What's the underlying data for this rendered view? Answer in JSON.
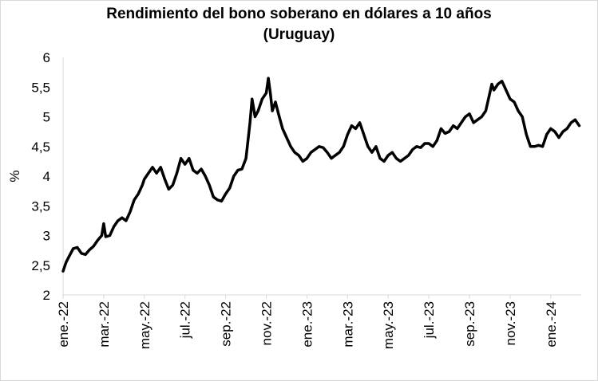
{
  "chart_data": {
    "type": "line",
    "title": "Rendimiento del bono soberano en dólares a 10 años",
    "subtitle": "(Uruguay)",
    "ylabel": "%",
    "xlabel": "",
    "ylim": [
      2,
      6
    ],
    "yticks": [
      "2",
      "2,5",
      "3",
      "3,5",
      "4",
      "4,5",
      "5",
      "5,5",
      "6"
    ],
    "xticks": [
      "ene.-22",
      "mar.-22",
      "may.-22",
      "jul.-22",
      "sep.-22",
      "nov.-22",
      "ene.-23",
      "mar.-23",
      "may.-23",
      "jul.-23",
      "sep.-23",
      "nov.-23",
      "ene.-24"
    ],
    "x_range_months": [
      0,
      25.5
    ],
    "grid": false,
    "series": [
      {
        "color": "#000000",
        "points": [
          [
            0.0,
            2.4
          ],
          [
            0.15,
            2.55
          ],
          [
            0.3,
            2.65
          ],
          [
            0.5,
            2.78
          ],
          [
            0.7,
            2.8
          ],
          [
            0.9,
            2.7
          ],
          [
            1.1,
            2.68
          ],
          [
            1.3,
            2.76
          ],
          [
            1.5,
            2.82
          ],
          [
            1.7,
            2.92
          ],
          [
            1.9,
            3.0
          ],
          [
            2.0,
            3.2
          ],
          [
            2.1,
            2.98
          ],
          [
            2.3,
            3.0
          ],
          [
            2.5,
            3.15
          ],
          [
            2.7,
            3.25
          ],
          [
            2.9,
            3.3
          ],
          [
            3.1,
            3.25
          ],
          [
            3.3,
            3.4
          ],
          [
            3.5,
            3.6
          ],
          [
            3.7,
            3.7
          ],
          [
            3.9,
            3.85
          ],
          [
            4.0,
            3.95
          ],
          [
            4.2,
            4.05
          ],
          [
            4.4,
            4.15
          ],
          [
            4.6,
            4.05
          ],
          [
            4.8,
            4.15
          ],
          [
            5.0,
            3.95
          ],
          [
            5.2,
            3.78
          ],
          [
            5.4,
            3.85
          ],
          [
            5.6,
            4.05
          ],
          [
            5.8,
            4.3
          ],
          [
            6.0,
            4.2
          ],
          [
            6.2,
            4.3
          ],
          [
            6.4,
            4.1
          ],
          [
            6.6,
            4.05
          ],
          [
            6.8,
            4.12
          ],
          [
            7.0,
            4.0
          ],
          [
            7.2,
            3.85
          ],
          [
            7.4,
            3.65
          ],
          [
            7.6,
            3.6
          ],
          [
            7.8,
            3.58
          ],
          [
            8.0,
            3.7
          ],
          [
            8.2,
            3.8
          ],
          [
            8.4,
            4.0
          ],
          [
            8.6,
            4.1
          ],
          [
            8.8,
            4.12
          ],
          [
            9.0,
            4.3
          ],
          [
            9.1,
            4.6
          ],
          [
            9.2,
            4.9
          ],
          [
            9.3,
            5.3
          ],
          [
            9.45,
            5.0
          ],
          [
            9.6,
            5.1
          ],
          [
            9.8,
            5.3
          ],
          [
            10.0,
            5.4
          ],
          [
            10.1,
            5.65
          ],
          [
            10.2,
            5.4
          ],
          [
            10.3,
            5.1
          ],
          [
            10.45,
            5.25
          ],
          [
            10.6,
            5.05
          ],
          [
            10.8,
            4.8
          ],
          [
            11.0,
            4.65
          ],
          [
            11.2,
            4.5
          ],
          [
            11.4,
            4.4
          ],
          [
            11.6,
            4.35
          ],
          [
            11.8,
            4.25
          ],
          [
            12.0,
            4.3
          ],
          [
            12.2,
            4.4
          ],
          [
            12.4,
            4.45
          ],
          [
            12.6,
            4.5
          ],
          [
            12.8,
            4.48
          ],
          [
            13.0,
            4.4
          ],
          [
            13.2,
            4.3
          ],
          [
            13.4,
            4.35
          ],
          [
            13.6,
            4.4
          ],
          [
            13.8,
            4.5
          ],
          [
            14.0,
            4.7
          ],
          [
            14.2,
            4.85
          ],
          [
            14.4,
            4.8
          ],
          [
            14.6,
            4.9
          ],
          [
            14.8,
            4.7
          ],
          [
            15.0,
            4.5
          ],
          [
            15.2,
            4.4
          ],
          [
            15.4,
            4.5
          ],
          [
            15.6,
            4.3
          ],
          [
            15.8,
            4.25
          ],
          [
            16.0,
            4.35
          ],
          [
            16.2,
            4.4
          ],
          [
            16.4,
            4.3
          ],
          [
            16.6,
            4.25
          ],
          [
            16.8,
            4.3
          ],
          [
            17.0,
            4.35
          ],
          [
            17.2,
            4.45
          ],
          [
            17.4,
            4.5
          ],
          [
            17.6,
            4.48
          ],
          [
            17.8,
            4.55
          ],
          [
            18.0,
            4.55
          ],
          [
            18.2,
            4.5
          ],
          [
            18.4,
            4.6
          ],
          [
            18.6,
            4.8
          ],
          [
            18.8,
            4.72
          ],
          [
            19.0,
            4.75
          ],
          [
            19.2,
            4.85
          ],
          [
            19.4,
            4.8
          ],
          [
            19.6,
            4.9
          ],
          [
            19.8,
            5.0
          ],
          [
            20.0,
            5.05
          ],
          [
            20.2,
            4.9
          ],
          [
            20.4,
            4.95
          ],
          [
            20.6,
            5.0
          ],
          [
            20.8,
            5.1
          ],
          [
            21.0,
            5.4
          ],
          [
            21.1,
            5.55
          ],
          [
            21.2,
            5.45
          ],
          [
            21.4,
            5.55
          ],
          [
            21.6,
            5.6
          ],
          [
            21.8,
            5.45
          ],
          [
            22.0,
            5.3
          ],
          [
            22.2,
            5.25
          ],
          [
            22.4,
            5.1
          ],
          [
            22.6,
            5.0
          ],
          [
            22.8,
            4.7
          ],
          [
            23.0,
            4.5
          ],
          [
            23.2,
            4.5
          ],
          [
            23.4,
            4.52
          ],
          [
            23.6,
            4.5
          ],
          [
            23.8,
            4.7
          ],
          [
            24.0,
            4.8
          ],
          [
            24.2,
            4.75
          ],
          [
            24.4,
            4.65
          ],
          [
            24.6,
            4.75
          ],
          [
            24.8,
            4.8
          ],
          [
            25.0,
            4.9
          ],
          [
            25.2,
            4.95
          ],
          [
            25.4,
            4.85
          ]
        ]
      }
    ]
  }
}
